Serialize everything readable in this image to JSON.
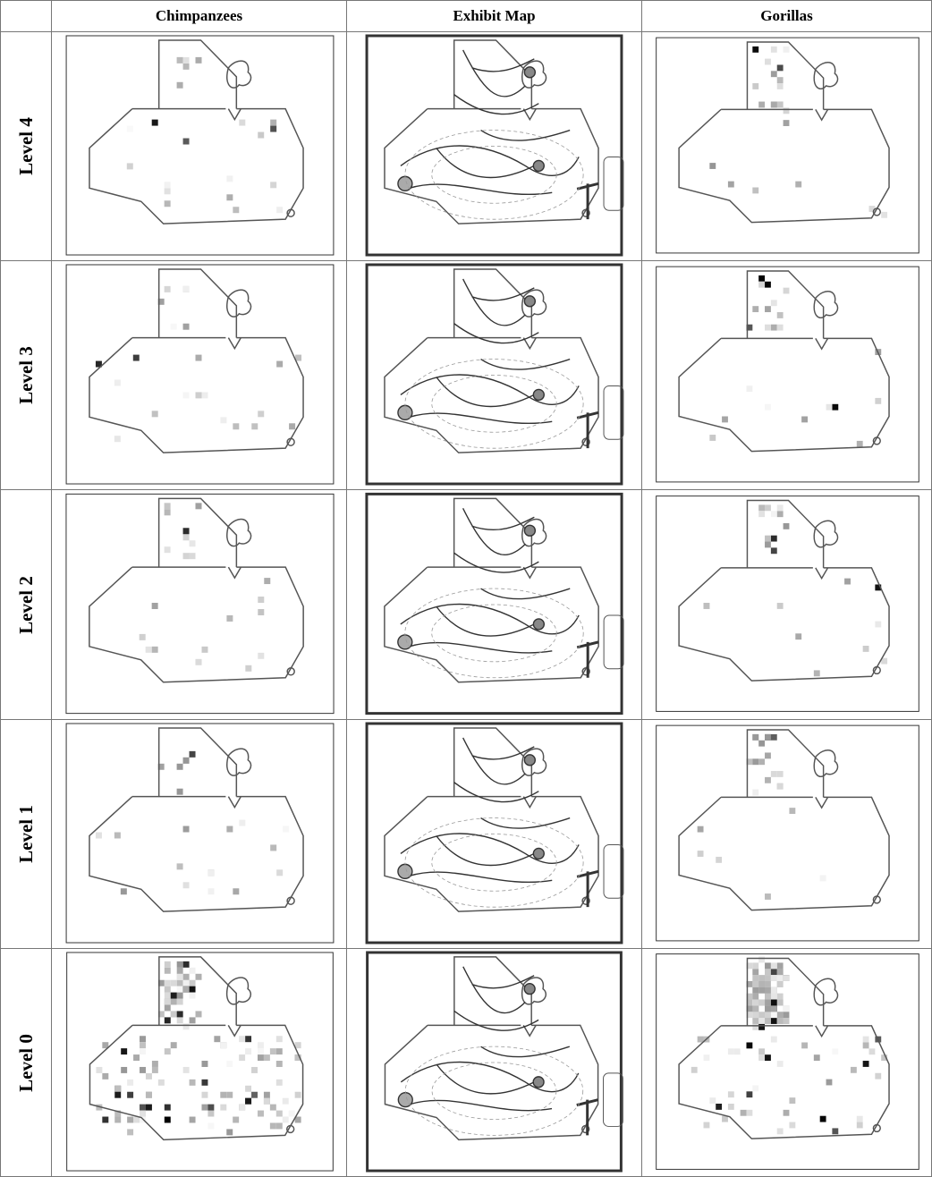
{
  "table": {
    "columns": [
      "Chimpanzees",
      "Exhibit Map",
      "Gorillas"
    ],
    "rows": [
      "Level 4",
      "Level 3",
      "Level 2",
      "Level 1",
      "Level 0"
    ]
  }
}
